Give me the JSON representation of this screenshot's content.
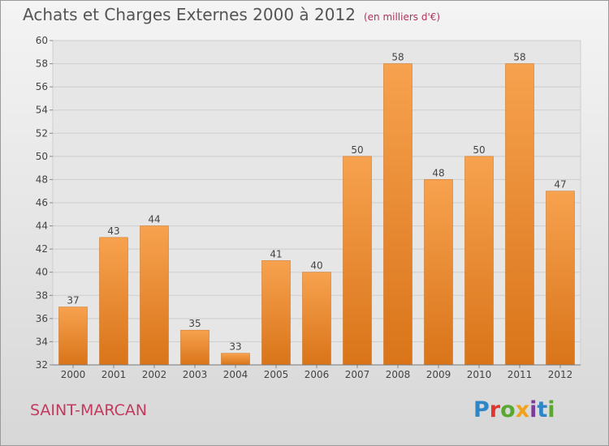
{
  "header": {
    "title": "Achats et Charges Externes 2000 à 2012",
    "unit": "(en milliers d'€)"
  },
  "footer": {
    "city": "SAINT-MARCAN",
    "logo_text": "Proxiti"
  },
  "colors": {
    "bar_top": "#f7a24f",
    "bar_bottom": "#d97419",
    "title": "#555555",
    "city": "#c23a5e"
  },
  "chart_data": {
    "type": "bar",
    "title": "Achats et Charges Externes 2000 à 2012",
    "subtitle": "(en milliers d'€)",
    "categories": [
      "2000",
      "2001",
      "2002",
      "2003",
      "2004",
      "2005",
      "2006",
      "2007",
      "2008",
      "2009",
      "2010",
      "2011",
      "2012"
    ],
    "values": [
      37,
      43,
      44,
      35,
      33,
      41,
      40,
      50,
      58,
      48,
      50,
      58,
      47
    ],
    "ylim": [
      32,
      60
    ],
    "yticks": [
      32,
      34,
      36,
      38,
      40,
      42,
      44,
      46,
      48,
      50,
      52,
      54,
      56,
      58,
      60
    ],
    "grid": true,
    "data_labels": true
  }
}
